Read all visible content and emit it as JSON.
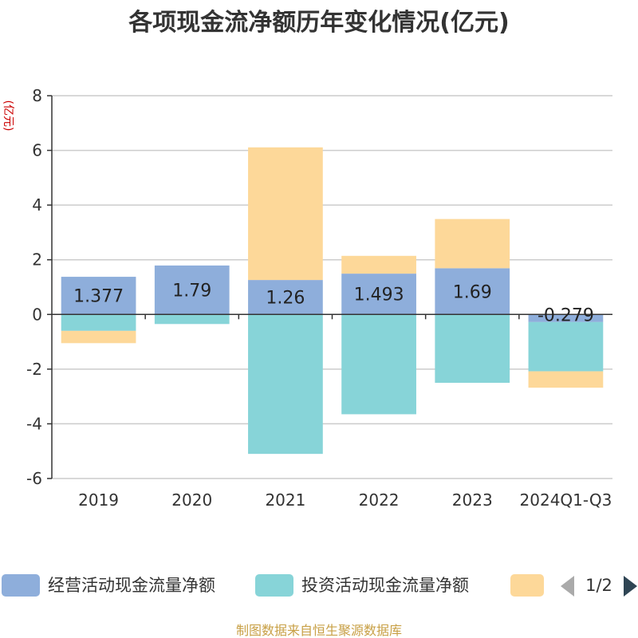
{
  "chart_data": {
    "type": "bar",
    "stacked": true,
    "title": "各项现金流净额历年变化情况(亿元)",
    "ylabel": "(亿元)",
    "xlabel": "",
    "ylim": [
      -6,
      8
    ],
    "yticks": [
      -6,
      -4,
      -2,
      0,
      2,
      4,
      6,
      8
    ],
    "categories": [
      "2019",
      "2020",
      "2021",
      "2022",
      "2023",
      "2024Q1-Q3"
    ],
    "series": [
      {
        "name": "经营活动现金流量净额",
        "color": "#8eaedb",
        "values": [
          1.377,
          1.79,
          1.26,
          1.493,
          1.69,
          -0.279
        ],
        "labels": [
          "1.377",
          "1.79",
          "1.26",
          "1.493",
          "1.69",
          "-0.279"
        ]
      },
      {
        "name": "投资活动现金流量净额",
        "color": "#87d4d8",
        "values": [
          -0.6,
          -0.35,
          -5.1,
          -3.65,
          -2.5,
          -1.8
        ]
      },
      {
        "name": "",
        "color": "#fdd899",
        "values": [
          -0.45,
          0,
          4.85,
          0.65,
          1.8,
          -0.6
        ]
      }
    ],
    "legend_position": "bottom"
  },
  "legend": {
    "page": "1/2"
  },
  "source": "制图数据来自恒生聚源数据库"
}
